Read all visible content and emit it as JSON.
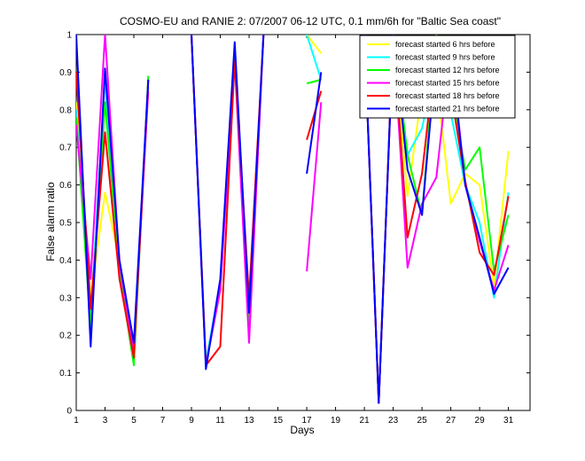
{
  "chart_data": {
    "type": "line",
    "title": "COSMO-EU and RANIE 2: 07/2007 06-12 UTC, 0.1 mm/6h for \"Baltic Sea coast\"",
    "xlabel": "Days",
    "ylabel": "False alarm ratio",
    "xlim": [
      1,
      32.5
    ],
    "ylim": [
      0,
      1
    ],
    "xticks": [
      1,
      3,
      5,
      7,
      9,
      11,
      13,
      15,
      17,
      19,
      21,
      23,
      25,
      27,
      29,
      31
    ],
    "yticks": [
      0,
      0.1,
      0.2,
      0.3,
      0.4,
      0.5,
      0.6,
      0.7,
      0.8,
      0.9,
      1
    ],
    "xtick_labels": [
      "1",
      "3",
      "5",
      "7",
      "9",
      "11",
      "13",
      "15",
      "17",
      "19",
      "21",
      "23",
      "25",
      "27",
      "29",
      "31"
    ],
    "ytick_labels": [
      "0",
      "0.1",
      "0.2",
      "0.3",
      "0.4",
      "0.5",
      "0.6",
      "0.7",
      "0.8",
      "0.9",
      "1"
    ],
    "grid": false,
    "legend_position": "top-right",
    "series": [
      {
        "name": "forecast started  6 hrs before",
        "color": "#ffff00",
        "points": [
          [
            1,
            0.82
          ],
          [
            2,
            0.3
          ],
          [
            3,
            0.58
          ],
          [
            4,
            0.4
          ],
          [
            5,
            0.15
          ],
          [
            6,
            0.87
          ],
          [
            null,
            null
          ],
          [
            9,
            1
          ],
          [
            10,
            0.13
          ],
          [
            11,
            0.32
          ],
          [
            12,
            0.96
          ],
          [
            13,
            0.24
          ],
          [
            14,
            1
          ],
          [
            null,
            null
          ],
          [
            17,
            1
          ],
          [
            18,
            0.95
          ],
          [
            null,
            null
          ],
          [
            21,
            1
          ],
          [
            22,
            0.02
          ],
          [
            23,
            1
          ],
          [
            24,
            0.57
          ],
          [
            25,
            0.85
          ],
          [
            26,
            0.88
          ],
          [
            27,
            0.55
          ],
          [
            28,
            0.63
          ],
          [
            29,
            0.6
          ],
          [
            30,
            0.33
          ],
          [
            31,
            0.69
          ]
        ]
      },
      {
        "name": "forecast started  9 hrs before",
        "color": "#00ffff",
        "points": [
          [
            1,
            0.8
          ],
          [
            2,
            0.25
          ],
          [
            3,
            0.88
          ],
          [
            4,
            0.38
          ],
          [
            5,
            0.17
          ],
          [
            6,
            0.86
          ],
          [
            null,
            null
          ],
          [
            9,
            1
          ],
          [
            10,
            0.13
          ],
          [
            11,
            0.34
          ],
          [
            12,
            0.97
          ],
          [
            13,
            0.24
          ],
          [
            14,
            1
          ],
          [
            null,
            null
          ],
          [
            17,
            1
          ],
          [
            18,
            0.88
          ],
          [
            null,
            null
          ],
          [
            21,
            1
          ],
          [
            22,
            0.02
          ],
          [
            23,
            1
          ],
          [
            24,
            0.68
          ],
          [
            25,
            0.75
          ],
          [
            26,
            0.93
          ],
          [
            27,
            0.79
          ],
          [
            28,
            0.6
          ],
          [
            29,
            0.5
          ],
          [
            30,
            0.3
          ],
          [
            31,
            0.58
          ]
        ]
      },
      {
        "name": "forecast started 12 hrs before",
        "color": "#00ff00",
        "points": [
          [
            1,
            0.78
          ],
          [
            2,
            0.22
          ],
          [
            3,
            0.82
          ],
          [
            4,
            0.37
          ],
          [
            5,
            0.12
          ],
          [
            6,
            0.89
          ],
          [
            null,
            null
          ],
          [
            9,
            1
          ],
          [
            10,
            0.12
          ],
          [
            11,
            0.33
          ],
          [
            12,
            0.95
          ],
          [
            13,
            0.22
          ],
          [
            14,
            1
          ],
          [
            null,
            null
          ],
          [
            17,
            0.87
          ],
          [
            18,
            0.88
          ],
          [
            null,
            null
          ],
          [
            21,
            1
          ],
          [
            22,
            0.02
          ],
          [
            23,
            1
          ],
          [
            24,
            0.68
          ],
          [
            25,
            0.52
          ],
          [
            26,
            1
          ],
          [
            27,
            0.86
          ],
          [
            28,
            0.64
          ],
          [
            29,
            0.7
          ],
          [
            30,
            0.37
          ],
          [
            31,
            0.52
          ]
        ]
      },
      {
        "name": "forecast started 15 hrs before",
        "color": "#ff00ff",
        "points": [
          [
            1,
            0.76
          ],
          [
            2,
            0.35
          ],
          [
            3,
            1
          ],
          [
            4,
            0.39
          ],
          [
            5,
            0.16
          ],
          [
            6,
            0.85
          ],
          [
            null,
            null
          ],
          [
            9,
            1
          ],
          [
            10,
            0.12
          ],
          [
            11,
            0.32
          ],
          [
            12,
            0.93
          ],
          [
            13,
            0.18
          ],
          [
            14,
            1
          ],
          [
            null,
            null
          ],
          [
            17,
            0.37
          ],
          [
            18,
            0.82
          ],
          [
            null,
            null
          ],
          [
            21,
            1
          ],
          [
            22,
            0.02
          ],
          [
            23,
            1
          ],
          [
            24,
            0.38
          ],
          [
            25,
            0.55
          ],
          [
            26,
            0.62
          ],
          [
            27,
            0.97
          ],
          [
            28,
            0.6
          ],
          [
            29,
            0.45
          ],
          [
            30,
            0.32
          ],
          [
            31,
            0.44
          ]
        ]
      },
      {
        "name": "forecast started 18 hrs before",
        "color": "#ff0000",
        "points": [
          [
            1,
            0.9
          ],
          [
            2,
            0.27
          ],
          [
            3,
            0.74
          ],
          [
            4,
            0.35
          ],
          [
            5,
            0.14
          ],
          [
            6,
            0.88
          ],
          [
            null,
            null
          ],
          [
            9,
            1
          ],
          [
            10,
            0.12
          ],
          [
            11,
            0.17
          ],
          [
            12,
            0.93
          ],
          [
            13,
            0.3
          ],
          [
            14,
            1
          ],
          [
            null,
            null
          ],
          [
            17,
            0.72
          ],
          [
            18,
            0.85
          ],
          [
            null,
            null
          ],
          [
            21,
            1
          ],
          [
            22,
            0.02
          ],
          [
            23,
            1
          ],
          [
            24,
            0.46
          ],
          [
            25,
            0.63
          ],
          [
            26,
            0.97
          ],
          [
            27,
            0.85
          ],
          [
            28,
            0.61
          ],
          [
            29,
            0.42
          ],
          [
            30,
            0.36
          ],
          [
            31,
            0.57
          ]
        ]
      },
      {
        "name": "forecast started 21 hrs before",
        "color": "#0000ff",
        "points": [
          [
            1,
            1
          ],
          [
            2,
            0.17
          ],
          [
            3,
            0.91
          ],
          [
            4,
            0.4
          ],
          [
            5,
            0.18
          ],
          [
            6,
            0.88
          ],
          [
            null,
            null
          ],
          [
            9,
            1
          ],
          [
            10,
            0.11
          ],
          [
            11,
            0.35
          ],
          [
            12,
            0.98
          ],
          [
            13,
            0.26
          ],
          [
            14,
            1
          ],
          [
            null,
            null
          ],
          [
            17,
            0.63
          ],
          [
            18,
            0.9
          ],
          [
            null,
            null
          ],
          [
            21,
            1
          ],
          [
            22,
            0.02
          ],
          [
            23,
            1
          ],
          [
            24,
            0.64
          ],
          [
            25,
            0.52
          ],
          [
            26,
            0.95
          ],
          [
            27,
            0.95
          ],
          [
            28,
            0.6
          ],
          [
            29,
            0.46
          ],
          [
            30,
            0.31
          ],
          [
            31,
            0.38
          ]
        ]
      }
    ]
  }
}
